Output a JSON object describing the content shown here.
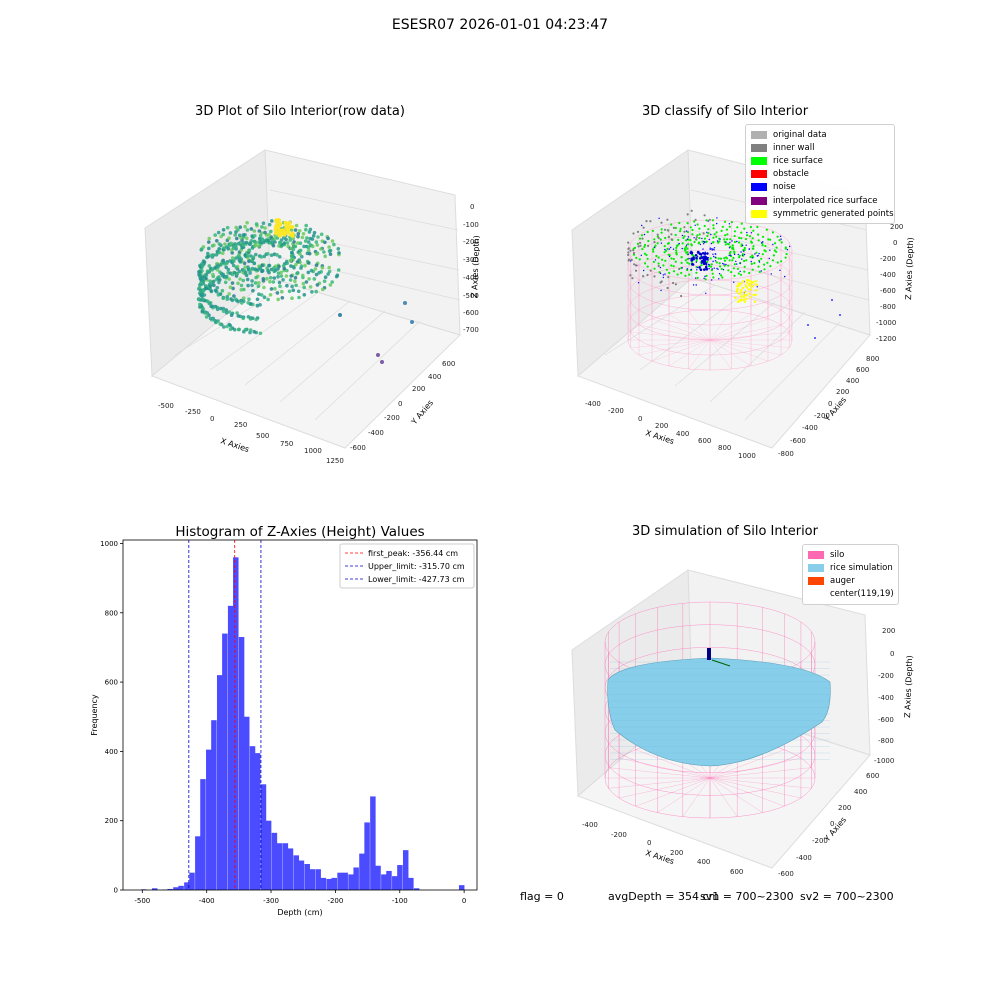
{
  "suptitle": "ESESR07 2026-01-01 04:23:47",
  "panels": {
    "p1": {
      "title": "3D Plot of Silo Interior(row data)",
      "xlabel": "X Axies",
      "ylabel": "Y Axies",
      "zlabel": "Z Axies (Depth)",
      "xticks": [
        "-500",
        "-250",
        "0",
        "250",
        "500",
        "750",
        "1000",
        "1250"
      ],
      "yticks": [
        "-600",
        "-400",
        "-200",
        "0",
        "200",
        "400",
        "600"
      ],
      "zticks": [
        "0",
        "-100",
        "-200",
        "-300",
        "-400",
        "-500",
        "-600",
        "-700"
      ]
    },
    "p2": {
      "title": "3D classify of Silo Interior",
      "xlabel": "X Axies",
      "ylabel": "Y Axies",
      "zlabel": "Z Axies (Depth)",
      "xticks": [
        "-400",
        "-200",
        "0",
        "200",
        "400",
        "600",
        "800",
        "1000"
      ],
      "yticks": [
        "-800",
        "-600",
        "-400",
        "-200",
        "0",
        "200",
        "400",
        "600",
        "800"
      ],
      "zticks": [
        "200",
        "0",
        "-200",
        "-400",
        "-600",
        "-800",
        "-1000",
        "-1200"
      ],
      "legend": [
        {
          "label": "original data",
          "color": "#b0b0b0"
        },
        {
          "label": "inner wall",
          "color": "#808080"
        },
        {
          "label": "rice surface",
          "color": "#00ff00"
        },
        {
          "label": "obstacle",
          "color": "#ff0000"
        },
        {
          "label": "noise",
          "color": "#0000ff"
        },
        {
          "label": "interpolated rice surface",
          "color": "#800080"
        },
        {
          "label": "symmetric generated points",
          "color": "#ffff00"
        }
      ]
    },
    "p4": {
      "title": "3D simulation of Silo Interior",
      "xlabel": "X Axies",
      "ylabel": "Y Axies",
      "zlabel": "Z Axies (Depth)",
      "xticks": [
        "-400",
        "-200",
        "0",
        "200",
        "400",
        "600"
      ],
      "yticks": [
        "-600",
        "-400",
        "-200",
        "0",
        "200",
        "400",
        "600"
      ],
      "zticks": [
        "200",
        "0",
        "-200",
        "-400",
        "-600",
        "-800",
        "-1000"
      ],
      "legend": [
        {
          "label": "silo",
          "color": "#ff69b4"
        },
        {
          "label": "rice simulation",
          "color": "#87ceeb"
        },
        {
          "label": "auger",
          "color": "#ff4500"
        },
        {
          "label": "center(119,19)",
          "color": ""
        }
      ]
    }
  },
  "status": {
    "flag": "flag = 0",
    "avg": "avgDepth = 354 cm",
    "sv1": "sv1 = 700~2300",
    "sv2": "sv2 = 700~2300"
  },
  "colors": {
    "bars": "#4b4bff",
    "peak": "#ff0000",
    "limits": "#0000cc",
    "silo": "#ff69b4",
    "rice": "#87ceeb"
  },
  "chart_data": {
    "type": "bar",
    "title": "Histogram of Z-Axies (Height) Values",
    "xlabel": "Depth (cm)",
    "ylabel": "Frequency",
    "xlim": [
      -530,
      20
    ],
    "ylim": [
      0,
      1010
    ],
    "xticks": [
      -500,
      -400,
      -300,
      -200,
      -100,
      0
    ],
    "yticks": [
      0,
      200,
      400,
      600,
      800,
      1000
    ],
    "bin_width": 8.5,
    "bins": [
      [
        -502,
        2
      ],
      [
        -485,
        5
      ],
      [
        -470,
        1
      ],
      [
        -461,
        3
      ],
      [
        -452,
        8
      ],
      [
        -444,
        12
      ],
      [
        -435,
        22
      ],
      [
        -427,
        50
      ],
      [
        -418,
        155
      ],
      [
        -410,
        320
      ],
      [
        -401,
        405
      ],
      [
        -393,
        490
      ],
      [
        -384,
        620
      ],
      [
        -376,
        740
      ],
      [
        -367,
        820
      ],
      [
        -359,
        960
      ],
      [
        -350,
        730
      ],
      [
        -342,
        500
      ],
      [
        -333,
        415
      ],
      [
        -325,
        395
      ],
      [
        -316,
        305
      ],
      [
        -308,
        200
      ],
      [
        -299,
        165
      ],
      [
        -291,
        135
      ],
      [
        -282,
        135
      ],
      [
        -274,
        120
      ],
      [
        -265,
        100
      ],
      [
        -257,
        85
      ],
      [
        -248,
        75
      ],
      [
        -240,
        60
      ],
      [
        -231,
        60
      ],
      [
        -223,
        35
      ],
      [
        -214,
        32
      ],
      [
        -206,
        35
      ],
      [
        -197,
        50
      ],
      [
        -189,
        50
      ],
      [
        -180,
        45
      ],
      [
        -172,
        65
      ],
      [
        -163,
        105
      ],
      [
        -155,
        195
      ],
      [
        -146,
        270
      ],
      [
        -138,
        70
      ],
      [
        -129,
        45
      ],
      [
        -121,
        55
      ],
      [
        -112,
        40
      ],
      [
        -104,
        72
      ],
      [
        -95,
        115
      ],
      [
        -87,
        35
      ],
      [
        -78,
        5
      ],
      [
        -8,
        14
      ]
    ],
    "vlines": [
      {
        "x": -356.44,
        "label": "first_peak: -356.44 cm",
        "color": "#ff0000"
      },
      {
        "x": -315.7,
        "label": "Upper_limit: -315.70 cm",
        "color": "#0000cc"
      },
      {
        "x": -427.73,
        "label": "Lower_limit: -427.73 cm",
        "color": "#0000cc"
      }
    ]
  }
}
